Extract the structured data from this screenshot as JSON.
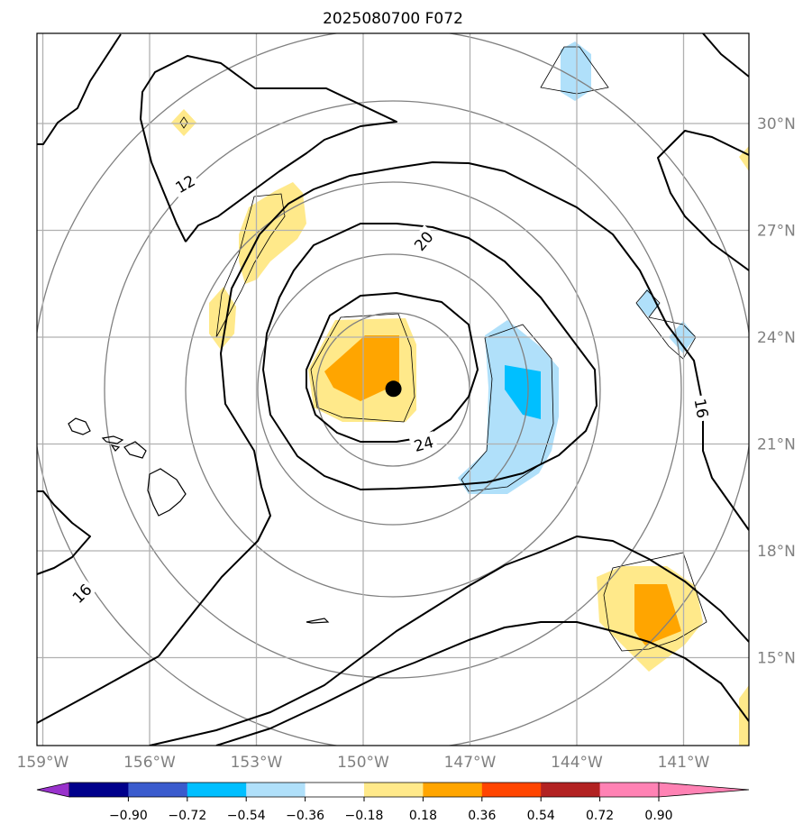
{
  "title": "2025080700 F072",
  "map": {
    "lon_ticks": [
      {
        "value": -159,
        "label": "159°W"
      },
      {
        "value": -156,
        "label": "156°W"
      },
      {
        "value": -153,
        "label": "153°W"
      },
      {
        "value": -150,
        "label": "150°W"
      },
      {
        "value": -147,
        "label": "147°W"
      },
      {
        "value": -144,
        "label": "144°W"
      },
      {
        "value": -141,
        "label": "141°W"
      }
    ],
    "lat_ticks": [
      {
        "value": 30,
        "label": "30°N"
      },
      {
        "value": 27,
        "label": "27°N"
      },
      {
        "value": 24,
        "label": "24°N"
      },
      {
        "value": 21,
        "label": "21°N"
      },
      {
        "value": 18,
        "label": "18°N"
      },
      {
        "value": 15,
        "label": "15°N"
      }
    ],
    "contour_labels": [
      {
        "text": "12",
        "lon": -155.0,
        "lat": 28.3,
        "rotate": -30
      },
      {
        "text": "20",
        "lon": -148.3,
        "lat": 26.7,
        "rotate": -50
      },
      {
        "text": "24",
        "lon": -148.3,
        "lat": 21.0,
        "rotate": -15
      },
      {
        "text": "16",
        "lon": -140.5,
        "lat": 22.0,
        "rotate": 80
      },
      {
        "text": "16",
        "lon": -157.9,
        "lat": 16.8,
        "rotate": -45
      }
    ],
    "storm_center": {
      "lon": -149.15,
      "lat": 22.55
    }
  },
  "colorbar": {
    "ticks": [
      "−0.90",
      "−0.72",
      "−0.54",
      "−0.36",
      "−0.18",
      "0.18",
      "0.36",
      "0.54",
      "0.72",
      "0.90"
    ],
    "colors": [
      "#9932cc",
      "#00008b",
      "#3a5bcd",
      "#00bfff",
      "#b0e0fa",
      "#ffffff",
      "#ffe98a",
      "#ffa500",
      "#ff4500",
      "#b22222",
      "#ff82b4",
      "#ff82b4"
    ]
  }
}
